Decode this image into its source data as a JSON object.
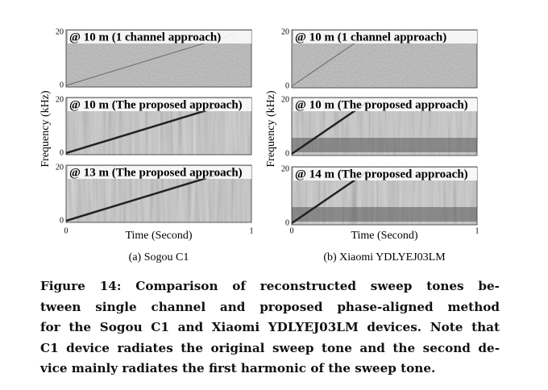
{
  "figure": {
    "subfigures": [
      {
        "y_label": "Frequency (kHz)",
        "x_label": "Time (Second)",
        "x_ticks": [
          "0",
          "1"
        ],
        "caption": "(a) Sogou C1",
        "panels": [
          {
            "label": "@ 10 m (1 channel approach)",
            "y_ticks": [
              "20",
              "0"
            ]
          },
          {
            "label": "@ 10 m (The proposed approach)",
            "y_ticks": [
              "20",
              "0"
            ]
          },
          {
            "label": "@ 13 m (The proposed approach)",
            "y_ticks": [
              "20",
              "0"
            ]
          }
        ]
      },
      {
        "y_label": "Frequency (kHz)",
        "x_label": "Time (Second)",
        "x_ticks": [
          "0",
          "1"
        ],
        "caption": "(b) Xiaomi YDLYEJ03LM",
        "panels": [
          {
            "label": "@ 10 m (1 channel approach)",
            "y_ticks": [
              "20",
              "0"
            ]
          },
          {
            "label": "@ 10 m (The proposed approach)",
            "y_ticks": [
              "20",
              "0"
            ]
          },
          {
            "label": "@ 14 m (The proposed approach)",
            "y_ticks": [
              "20",
              "0"
            ]
          }
        ]
      }
    ],
    "caption_lines": [
      "Figure 14: Comparison of reconstructed sweep tones be-",
      "tween single channel and proposed phase-aligned method",
      "for the Sogou C1 and Xiaomi YDLYEJ03LM devices. Note that",
      "C1 device radiates the original sweep tone and the second de-",
      "vice mainly radiates the first harmonic of the sweep tone."
    ]
  }
}
